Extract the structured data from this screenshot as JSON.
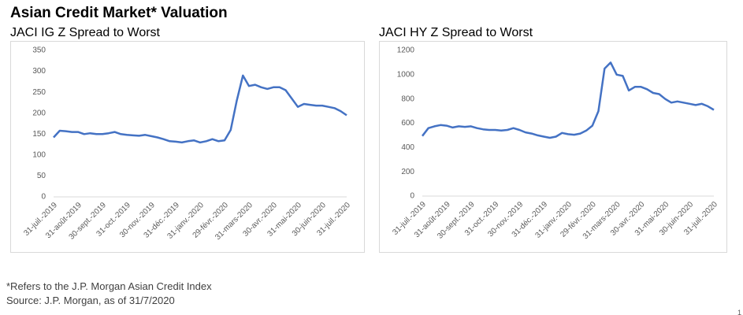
{
  "title": "Asian Credit Market* Valuation",
  "footnotes": [
    "*Refers to the J.P. Morgan Asian Credit Index",
    "Source: J.P. Morgan, as of 31/7/2020"
  ],
  "page_number": "1",
  "chart_data": [
    {
      "type": "line",
      "title": "JACI IG Z Spread to Worst",
      "categories": [
        "31-juil.-2019",
        null,
        null,
        null,
        "31-août-2019",
        null,
        null,
        null,
        "30-sept.-2019",
        null,
        null,
        null,
        "31-oct.-2019",
        null,
        null,
        null,
        "30-nov.-2019",
        null,
        null,
        null,
        "31-déc.-2019",
        null,
        null,
        null,
        "31-janv.-2020",
        null,
        null,
        null,
        "29-févr.-2020",
        null,
        null,
        null,
        "31-mars-2020",
        null,
        null,
        null,
        "30-avr.-2020",
        null,
        null,
        null,
        "31-mai-2020",
        null,
        null,
        null,
        "30-juin-2020",
        null,
        null,
        null,
        "31-juil.-2020"
      ],
      "series": [
        {
          "name": "JACI IG Z Spread to Worst",
          "color": "#4472c4",
          "values": [
            142,
            158,
            157,
            155,
            155,
            150,
            152,
            150,
            150,
            152,
            155,
            150,
            148,
            147,
            146,
            148,
            145,
            142,
            138,
            133,
            132,
            130,
            133,
            135,
            130,
            133,
            138,
            133,
            135,
            160,
            230,
            290,
            265,
            268,
            262,
            258,
            262,
            262,
            255,
            235,
            215,
            222,
            220,
            218,
            218,
            215,
            212,
            205,
            195
          ]
        }
      ],
      "ylim": [
        0,
        350
      ],
      "yticks": [
        0,
        50,
        100,
        150,
        200,
        250,
        300,
        350
      ],
      "grid": false
    },
    {
      "type": "line",
      "title": "JACI HY Z Spread to Worst",
      "categories": [
        "31-juil.-2019",
        null,
        null,
        null,
        "31-août-2019",
        null,
        null,
        null,
        "30-sept.-2019",
        null,
        null,
        null,
        "31-oct.-2019",
        null,
        null,
        null,
        "30-nov.-2019",
        null,
        null,
        null,
        "31-déc.-2019",
        null,
        null,
        null,
        "31-janv.-2020",
        null,
        null,
        null,
        "29-févr.-2020",
        null,
        null,
        null,
        "31-mars-2020",
        null,
        null,
        null,
        "30-avr.-2020",
        null,
        null,
        null,
        "31-mai-2020",
        null,
        null,
        null,
        "30-juin-2020",
        null,
        null,
        null,
        "31-juil.-2020"
      ],
      "series": [
        {
          "name": "JACI HY Z Spread to Worst",
          "color": "#4472c4",
          "values": [
            495,
            560,
            575,
            585,
            580,
            565,
            575,
            570,
            575,
            560,
            550,
            545,
            545,
            540,
            545,
            560,
            545,
            525,
            515,
            500,
            490,
            480,
            490,
            520,
            510,
            505,
            515,
            540,
            580,
            700,
            1050,
            1100,
            1000,
            990,
            870,
            900,
            900,
            880,
            850,
            840,
            800,
            770,
            780,
            770,
            760,
            750,
            760,
            740,
            710
          ]
        }
      ],
      "ylim": [
        0,
        1200
      ],
      "yticks": [
        0,
        200,
        400,
        600,
        800,
        1000,
        1200
      ],
      "grid": false
    }
  ]
}
